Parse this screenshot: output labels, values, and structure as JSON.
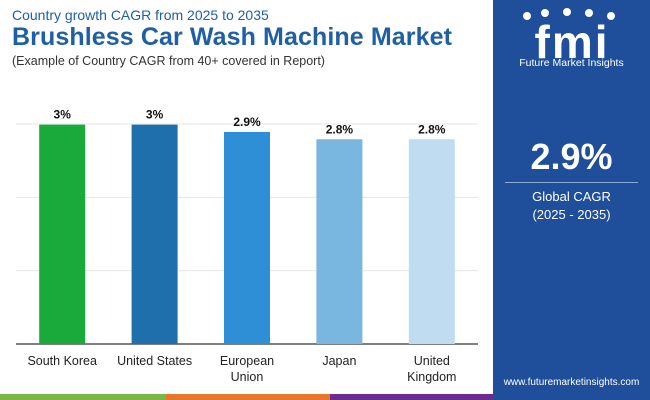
{
  "header": {
    "subtitle": "Country growth CAGR from 2025 to 2035",
    "title": "Brushless Car Wash Machine Market",
    "example": "(Example of Country CAGR from 40+ covered in Report)"
  },
  "sidebar": {
    "logo_text": "Future Market Insights",
    "cagr_value": "2.9%",
    "cagr_label": "Global CAGR",
    "cagr_period": "(2025 - 2035)",
    "website": "www.futuremarketinsights.com"
  },
  "colors": {
    "sidebar_bg": "#1f4e9a",
    "title": "#1f5fa8",
    "bars": [
      "#1aaa3c",
      "#1f6fad",
      "#2e8fd6",
      "#79b6e0",
      "#bfdcf0"
    ],
    "bottom_bar": [
      "#7ab648",
      "#e8762b",
      "#6a2c91",
      "#1f4e9a"
    ]
  },
  "chart_data": {
    "type": "bar",
    "categories": [
      "South Korea",
      "United States",
      "European Union",
      "Japan",
      "United Kingdom"
    ],
    "category_lines": [
      [
        "South Korea"
      ],
      [
        "United States"
      ],
      [
        "European",
        "Union"
      ],
      [
        "Japan"
      ],
      [
        "United",
        "Kingdom"
      ]
    ],
    "values": [
      3.0,
      3.0,
      2.9,
      2.8,
      2.8
    ],
    "data_labels": [
      "3%",
      "3%",
      "2.9%",
      "2.8%",
      "2.8%"
    ],
    "ylim": [
      0,
      3.2
    ],
    "grid": true,
    "title": "",
    "xlabel": "",
    "ylabel": ""
  }
}
